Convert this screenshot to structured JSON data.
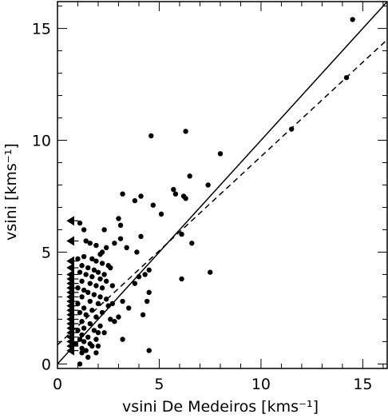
{
  "chart_data": {
    "type": "scatter",
    "xlabel": "vsini De Medeiros [kms⁻¹]",
    "ylabel": "vsini [kms⁻¹]",
    "xlim": [
      0,
      16.2
    ],
    "ylim": [
      -0.2,
      16.2
    ],
    "xticks": [
      0,
      5,
      10,
      15
    ],
    "yticks": [
      0,
      5,
      10,
      15
    ],
    "minor_tick_step": 1,
    "grid": false,
    "series": [
      {
        "marker": "circle",
        "points": [
          [
            14.5,
            15.4
          ],
          [
            14.2,
            12.8
          ],
          [
            11.5,
            10.5
          ],
          [
            6.3,
            10.4
          ],
          [
            4.6,
            10.2
          ],
          [
            8.0,
            9.4
          ],
          [
            6.5,
            8.4
          ],
          [
            7.4,
            8.0
          ],
          [
            5.7,
            7.8
          ],
          [
            5.8,
            7.6
          ],
          [
            6.2,
            7.5
          ],
          [
            6.3,
            7.4
          ],
          [
            3.2,
            7.6
          ],
          [
            4.1,
            7.5
          ],
          [
            3.8,
            7.3
          ],
          [
            4.7,
            7.1
          ],
          [
            5.1,
            6.7
          ],
          [
            3.0,
            6.5
          ],
          [
            3.1,
            6.2
          ],
          [
            2.3,
            6.0
          ],
          [
            6.1,
            5.8
          ],
          [
            4.1,
            5.7
          ],
          [
            3.1,
            5.6
          ],
          [
            6.6,
            5.4
          ],
          [
            2.8,
            5.4
          ],
          [
            3.4,
            5.2
          ],
          [
            2.2,
            5.0
          ],
          [
            3.9,
            5.0
          ],
          [
            6.1,
            3.8
          ],
          [
            7.5,
            4.1
          ],
          [
            4.3,
            4.0
          ],
          [
            4.5,
            4.2
          ],
          [
            4.0,
            3.9
          ],
          [
            3.8,
            3.6
          ],
          [
            4.5,
            3.2
          ],
          [
            3.2,
            2.8
          ],
          [
            2.7,
            2.7
          ],
          [
            3.5,
            2.5
          ],
          [
            4.4,
            2.8
          ],
          [
            4.2,
            2.2
          ],
          [
            3.0,
            2.1
          ],
          [
            2.8,
            1.9
          ],
          [
            3.2,
            1.1
          ],
          [
            2.0,
            1.4
          ],
          [
            4.5,
            0.6
          ],
          [
            1.2,
            0.5
          ],
          [
            1.7,
            0.8
          ],
          [
            1.1,
            6.3
          ],
          [
            1.3,
            6.0
          ],
          [
            1.4,
            5.5
          ],
          [
            1.6,
            5.4
          ],
          [
            1.9,
            5.3
          ],
          [
            2.4,
            5.2
          ],
          [
            2.1,
            4.9
          ],
          [
            1.3,
            4.8
          ],
          [
            1.7,
            4.7
          ],
          [
            1.9,
            4.6
          ],
          [
            2.2,
            4.5
          ],
          [
            2.5,
            4.4
          ],
          [
            2.6,
            4.3
          ],
          [
            1.2,
            4.4
          ],
          [
            1.5,
            4.3
          ],
          [
            1.8,
            4.2
          ],
          [
            2.0,
            4.1
          ],
          [
            2.3,
            4.0
          ],
          [
            1.4,
            4.0
          ],
          [
            1.7,
            3.9
          ],
          [
            2.1,
            3.8
          ],
          [
            2.4,
            3.7
          ],
          [
            1.2,
            3.7
          ],
          [
            1.6,
            3.6
          ],
          [
            1.9,
            3.5
          ],
          [
            2.2,
            3.4
          ],
          [
            2.7,
            3.5
          ],
          [
            1.3,
            3.3
          ],
          [
            1.5,
            3.2
          ],
          [
            1.8,
            3.1
          ],
          [
            2.1,
            3.0
          ],
          [
            2.4,
            2.9
          ],
          [
            1.2,
            3.0
          ],
          [
            1.6,
            2.8
          ],
          [
            2.0,
            2.7
          ],
          [
            2.5,
            2.6
          ],
          [
            1.3,
            2.5
          ],
          [
            1.7,
            2.4
          ],
          [
            2.2,
            2.3
          ],
          [
            1.4,
            2.2
          ],
          [
            1.9,
            2.1
          ],
          [
            2.6,
            2.0
          ],
          [
            1.2,
            1.9
          ],
          [
            1.6,
            1.8
          ],
          [
            2.1,
            1.7
          ],
          [
            1.3,
            1.6
          ],
          [
            1.8,
            1.5
          ],
          [
            2.3,
            1.4
          ],
          [
            1.2,
            1.3
          ],
          [
            1.5,
            1.2
          ],
          [
            1.9,
            1.1
          ],
          [
            1.3,
            1.0
          ],
          [
            1.6,
            0.9
          ],
          [
            2.0,
            0.8
          ],
          [
            1.2,
            0.7
          ],
          [
            1.4,
            0.6
          ],
          [
            1.9,
            0.5
          ],
          [
            1.1,
            0.0
          ],
          [
            1.5,
            0.3
          ],
          [
            1.0,
            4.7
          ],
          [
            1.1,
            4.1
          ],
          [
            1.0,
            3.4
          ],
          [
            1.0,
            2.7
          ],
          [
            1.1,
            2.3
          ],
          [
            1.0,
            1.5
          ],
          [
            1.1,
            1.1
          ],
          [
            0.9,
            0.9
          ]
        ]
      },
      {
        "marker": "left-arrow",
        "points": [
          [
            0.8,
            6.4
          ],
          [
            0.8,
            5.5
          ],
          [
            0.8,
            4.6
          ],
          [
            0.8,
            4.3
          ],
          [
            0.8,
            4.0
          ],
          [
            0.8,
            3.8
          ],
          [
            0.8,
            3.6
          ],
          [
            0.8,
            3.4
          ],
          [
            0.8,
            3.2
          ],
          [
            0.8,
            3.0
          ],
          [
            0.8,
            2.8
          ],
          [
            0.8,
            2.6
          ],
          [
            0.8,
            2.4
          ],
          [
            0.8,
            2.2
          ],
          [
            0.8,
            2.0
          ],
          [
            0.8,
            1.8
          ],
          [
            0.8,
            1.6
          ],
          [
            0.8,
            1.4
          ],
          [
            0.8,
            1.2
          ],
          [
            0.8,
            1.0
          ],
          [
            0.8,
            0.8
          ],
          [
            0.8,
            0.6
          ]
        ]
      }
    ],
    "lines": [
      {
        "style": "solid",
        "x": [
          0,
          16.2
        ],
        "y": [
          0,
          16.2
        ]
      },
      {
        "style": "dashed",
        "x": [
          0,
          16.2
        ],
        "y": [
          0.85,
          14.5
        ]
      }
    ]
  }
}
